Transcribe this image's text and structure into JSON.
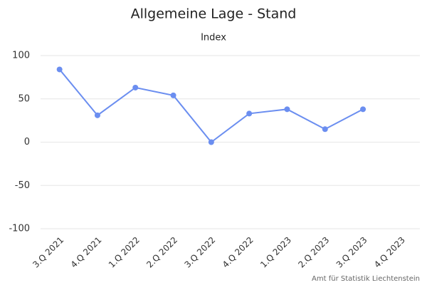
{
  "chart_data": {
    "type": "line",
    "title": "Allgemeine Lage - Stand",
    "subtitle": "Index",
    "categories": [
      "3.Q 2021",
      "4.Q 2021",
      "1.Q 2022",
      "2.Q 2022",
      "3.Q 2022",
      "4.Q 2022",
      "1.Q 2023",
      "2.Q 2023",
      "3.Q 2023",
      "4.Q 2023"
    ],
    "series": [
      {
        "name": "Stand",
        "color": "#6b8ef0",
        "values": [
          84,
          31,
          63,
          54,
          0,
          33,
          38,
          15,
          38,
          null
        ]
      }
    ],
    "ylim": [
      -100,
      100
    ],
    "yticks": [
      -100,
      -50,
      0,
      50,
      100
    ],
    "grid": true,
    "credits": "Amt für Statistik Liechtenstein"
  }
}
